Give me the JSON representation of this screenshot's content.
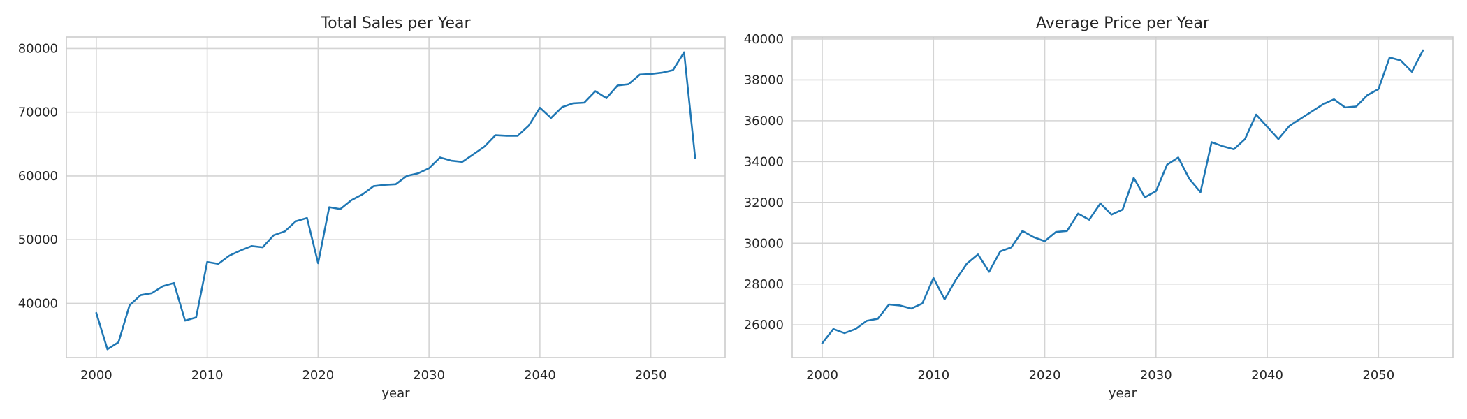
{
  "chart_data": [
    {
      "type": "line",
      "title": "Total Sales per Year",
      "xlabel": "year",
      "ylabel": "",
      "grid": true,
      "legend": "none",
      "color": "#1f77b4",
      "xlim": [
        1997.3,
        2056.7
      ],
      "ylim": [
        31500,
        81800
      ],
      "xticks": [
        2000,
        2010,
        2020,
        2030,
        2040,
        2050
      ],
      "yticks": [
        40000,
        50000,
        60000,
        70000,
        80000
      ],
      "x": [
        2000,
        2001,
        2002,
        2003,
        2004,
        2005,
        2006,
        2007,
        2008,
        2009,
        2010,
        2011,
        2012,
        2013,
        2014,
        2015,
        2016,
        2017,
        2018,
        2019,
        2020,
        2021,
        2022,
        2023,
        2024,
        2025,
        2026,
        2027,
        2028,
        2029,
        2030,
        2031,
        2032,
        2033,
        2034,
        2035,
        2036,
        2037,
        2038,
        2039,
        2040,
        2041,
        2042,
        2043,
        2044,
        2045,
        2046,
        2047,
        2048,
        2049,
        2050,
        2051,
        2052,
        2053,
        2054
      ],
      "y": [
        38500,
        32800,
        33900,
        39700,
        41300,
        41600,
        42700,
        43200,
        37300,
        37800,
        46500,
        46200,
        47500,
        48300,
        49000,
        48800,
        50700,
        51300,
        52900,
        53400,
        46300,
        55100,
        54800,
        56200,
        57100,
        58400,
        58600,
        58700,
        60000,
        60400,
        61200,
        62900,
        62400,
        62200,
        63400,
        64600,
        66400,
        66300,
        66300,
        67900,
        70700,
        69100,
        70800,
        71400,
        71500,
        73300,
        72200,
        74200,
        74400,
        75900,
        76000,
        76200,
        76600,
        79400,
        62800
      ]
    },
    {
      "type": "line",
      "title": "Average Price per Year",
      "xlabel": "year",
      "ylabel": "",
      "grid": true,
      "legend": "none",
      "color": "#1f77b4",
      "xlim": [
        1997.3,
        2056.7
      ],
      "ylim": [
        24400,
        40100
      ],
      "xticks": [
        2000,
        2010,
        2020,
        2030,
        2040,
        2050
      ],
      "yticks": [
        26000,
        28000,
        30000,
        32000,
        34000,
        36000,
        38000,
        40000
      ],
      "x": [
        2000,
        2001,
        2002,
        2003,
        2004,
        2005,
        2006,
        2007,
        2008,
        2009,
        2010,
        2011,
        2012,
        2013,
        2014,
        2015,
        2016,
        2017,
        2018,
        2019,
        2020,
        2021,
        2022,
        2023,
        2024,
        2025,
        2026,
        2027,
        2028,
        2029,
        2030,
        2031,
        2032,
        2033,
        2034,
        2035,
        2036,
        2037,
        2038,
        2039,
        2040,
        2041,
        2042,
        2043,
        2044,
        2045,
        2046,
        2047,
        2048,
        2049,
        2050,
        2051,
        2052,
        2053,
        2054
      ],
      "y": [
        25100,
        25800,
        25600,
        25800,
        26200,
        26300,
        27000,
        26950,
        26800,
        27050,
        28300,
        27250,
        28200,
        29000,
        29450,
        28600,
        29600,
        29800,
        30600,
        30300,
        30100,
        30550,
        30600,
        31450,
        31150,
        31950,
        31400,
        31650,
        33200,
        32250,
        32550,
        33850,
        34200,
        33150,
        32500,
        34950,
        34750,
        34600,
        35100,
        36300,
        35700,
        35100,
        35750,
        36100,
        36450,
        36800,
        37050,
        36650,
        36700,
        37250,
        37550,
        39100,
        38950,
        38400,
        39450
      ]
    }
  ]
}
